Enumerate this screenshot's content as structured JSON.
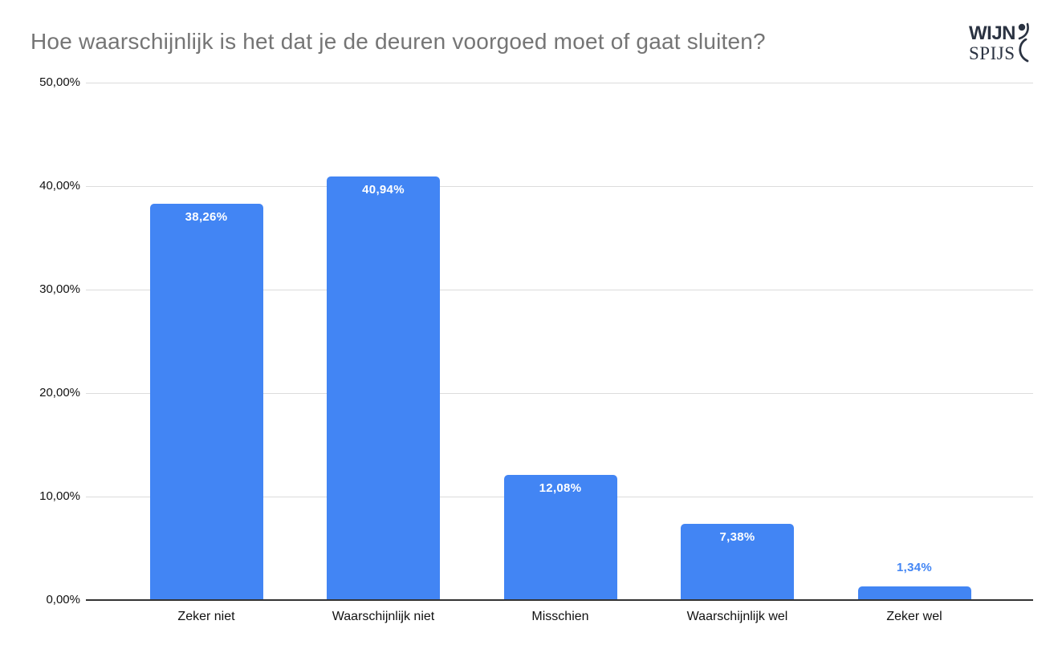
{
  "title": "Hoe waarschijnlijk is het dat je de deuren voorgoed moet of gaat sluiten?",
  "logo": {
    "line1": "WIJN",
    "line2": "SPIJS",
    "color": "#2b3342"
  },
  "chart_data": {
    "type": "bar",
    "title": "Hoe waarschijnlijk is het dat je de deuren voorgoed moet of gaat sluiten?",
    "categories": [
      "Zeker niet",
      "Waarschijnlijk niet",
      "Misschien",
      "Waarschijnlijk wel",
      "Zeker wel"
    ],
    "values": [
      38.26,
      40.94,
      12.08,
      7.38,
      1.34
    ],
    "value_labels": [
      "38,26%",
      "40,94%",
      "12,08%",
      "7,38%",
      "1,34%"
    ],
    "xlabel": "",
    "ylabel": "",
    "ylim": [
      0,
      50
    ],
    "ytick_step": 10,
    "ytick_labels": [
      "0,00%",
      "10,00%",
      "20,00%",
      "30,00%",
      "40,00%",
      "50,00%"
    ],
    "grid": true,
    "legend": "none",
    "bar_color": "#4285f4",
    "value_label_color_inside": "#ffffff",
    "value_label_color_outside": "#4285f4",
    "title_color": "#757575"
  }
}
